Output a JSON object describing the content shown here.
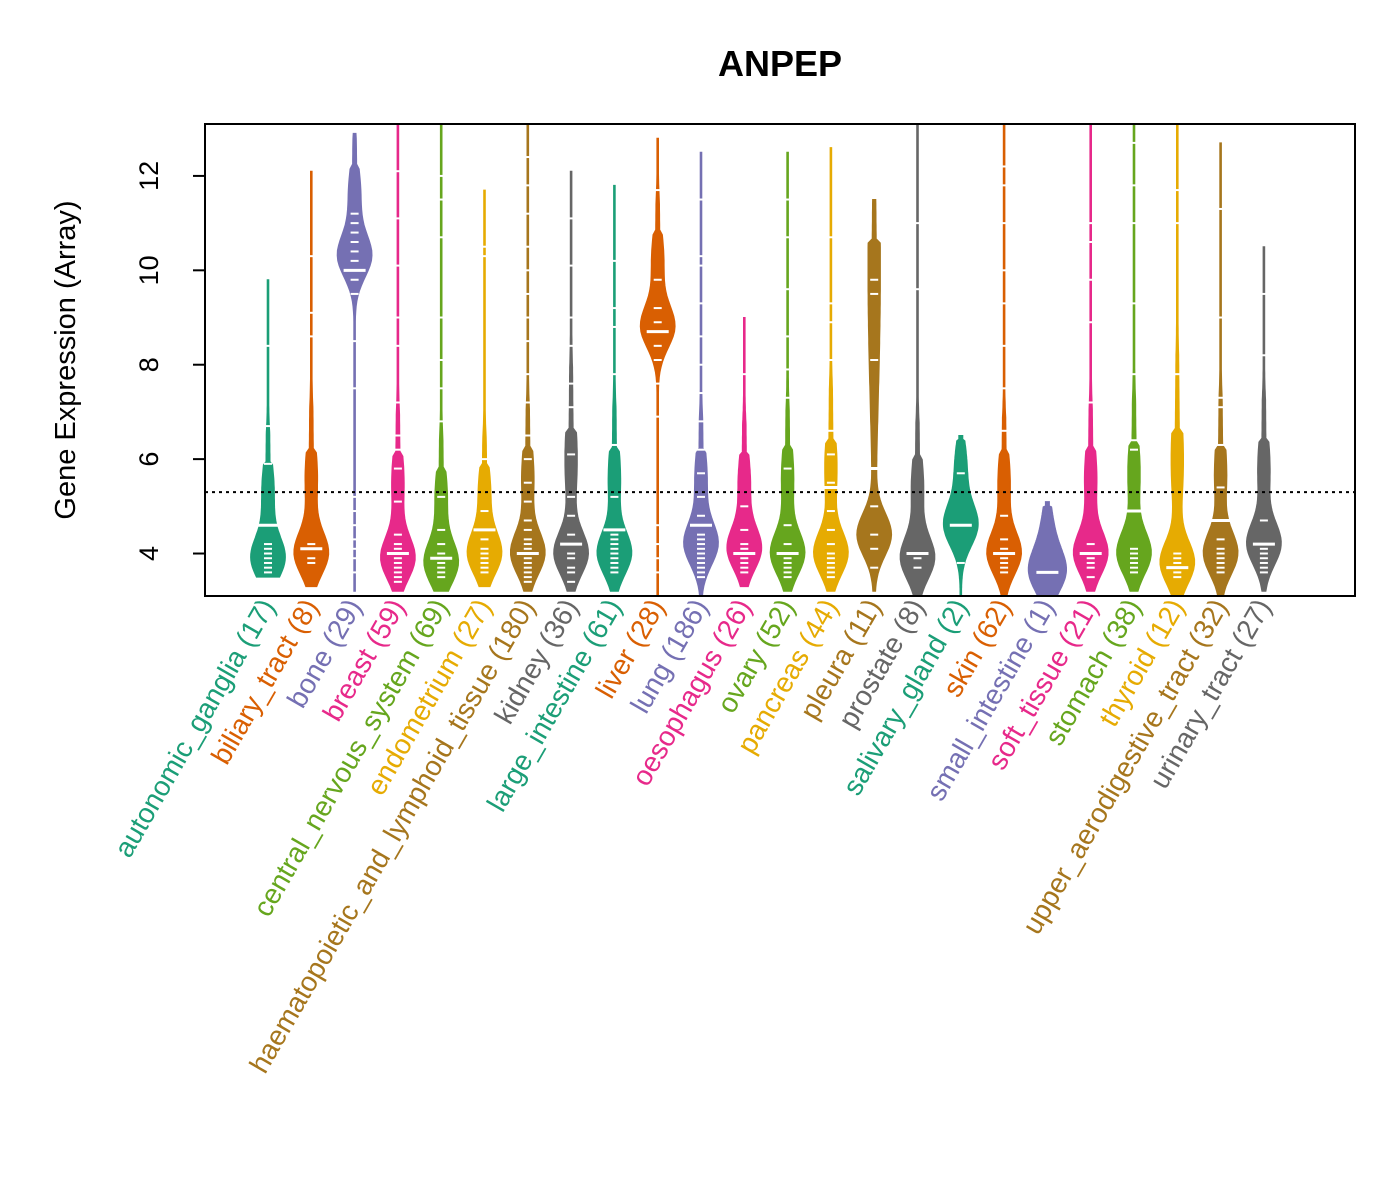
{
  "chart_data": {
    "type": "violin",
    "title": "ANPEP",
    "ylabel": "Gene Expression (Array)",
    "xlabel": "",
    "ylim": [
      3.1,
      13.1
    ],
    "yticks": [
      4,
      6,
      8,
      10,
      12
    ],
    "ytick_labels": [
      "4",
      "6",
      "8",
      "10",
      "12"
    ],
    "reference_line": 5.3,
    "categories": [
      {
        "name": "autonomic_ganglia",
        "count": 17,
        "label": "autonomic_ganglia (17)",
        "color": "#1B9E77",
        "min": 3.5,
        "max": 9.8,
        "median": 4.6,
        "mode": 3.9,
        "upper": 5.3,
        "points": [
          3.6,
          3.7,
          3.8,
          3.9,
          4.0,
          4.0,
          4.1,
          4.2,
          4.6,
          5.9,
          6.7,
          8.4
        ]
      },
      {
        "name": "biliary_tract",
        "count": 8,
        "label": "biliary_tract (8)",
        "color": "#D95F02",
        "min": 3.3,
        "max": 12.1,
        "median": 4.1,
        "mode": 4.0,
        "upper": 5.6,
        "points": [
          3.8,
          3.9,
          4.1,
          4.2,
          8.6,
          9.1,
          10.3
        ]
      },
      {
        "name": "bone",
        "count": 29,
        "label": "bone (29)",
        "color": "#7570B3",
        "min": 3.2,
        "max": 12.9,
        "median": 10.0,
        "mode": 10.3,
        "upper": 11.6,
        "points": [
          3.6,
          3.9,
          4.1,
          4.3,
          4.6,
          4.9,
          5.2,
          7.5,
          8.5,
          9.5,
          9.8,
          10.0,
          10.2,
          10.4,
          10.6,
          10.8,
          11.0,
          11.2
        ]
      },
      {
        "name": "breast",
        "count": 59,
        "label": "breast (59)",
        "color": "#E7298A",
        "min": 3.2,
        "max": 13.1,
        "median": 4.0,
        "mode": 3.9,
        "upper": 5.5,
        "points": [
          3.4,
          3.5,
          3.6,
          3.7,
          3.8,
          3.9,
          4.0,
          4.1,
          4.2,
          4.4,
          5.1,
          5.8,
          6.2,
          6.5,
          7.2,
          8.4,
          9.0,
          10.1,
          11.1,
          12.1
        ]
      },
      {
        "name": "central_nervous_system",
        "count": 69,
        "label": "central_nervous_system (69)",
        "color": "#66A61E",
        "min": 3.2,
        "max": 13.1,
        "median": 3.9,
        "mode": 3.8,
        "upper": 5.2,
        "points": [
          3.5,
          3.6,
          3.7,
          3.8,
          3.9,
          4.0,
          4.2,
          4.5,
          5.2,
          6.8,
          7.5,
          8.1,
          9.0,
          10.7,
          11.5,
          12.0
        ]
      },
      {
        "name": "endometrium",
        "count": 27,
        "label": "endometrium (27)",
        "color": "#E6AB02",
        "min": 3.3,
        "max": 11.7,
        "median": 4.5,
        "mode": 4.0,
        "upper": 5.3,
        "points": [
          3.6,
          3.7,
          3.8,
          3.9,
          4.0,
          4.1,
          4.3,
          4.9,
          6.0,
          10.3,
          10.5
        ]
      },
      {
        "name": "haematopoietic_and_lymphoid_tissue",
        "count": 180,
        "label": "haematopoietic_and_lymphoid_tissue (180)",
        "color": "#A6761D",
        "min": 3.2,
        "max": 13.1,
        "median": 4.0,
        "mode": 4.0,
        "upper": 5.6,
        "points": [
          3.4,
          3.5,
          3.6,
          3.7,
          3.8,
          3.9,
          4.0,
          4.1,
          4.2,
          4.3,
          4.5,
          4.7,
          5.1,
          5.5,
          6.0,
          6.5,
          7.2,
          7.8,
          8.5,
          9.0,
          9.5,
          10.0,
          10.5,
          11.2,
          11.8,
          12.4
        ]
      },
      {
        "name": "kidney",
        "count": 36,
        "label": "kidney (36)",
        "color": "#666666",
        "min": 3.2,
        "max": 12.1,
        "median": 4.2,
        "mode": 4.0,
        "upper": 6.0,
        "points": [
          3.4,
          3.6,
          3.7,
          3.9,
          4.0,
          4.2,
          4.4,
          4.8,
          5.2,
          6.1,
          7.1,
          7.6,
          8.4,
          9.0,
          10.1,
          11.1
        ]
      },
      {
        "name": "large_intestine",
        "count": 61,
        "label": "large_intestine (61)",
        "color": "#1B9E77",
        "min": 3.2,
        "max": 11.8,
        "median": 4.5,
        "mode": 4.0,
        "upper": 5.6,
        "points": [
          3.6,
          3.7,
          3.8,
          3.9,
          4.0,
          4.1,
          4.2,
          4.3,
          4.4,
          4.5,
          5.2,
          6.3,
          7.8,
          8.8,
          9.2,
          10.2
        ]
      },
      {
        "name": "liver",
        "count": 28,
        "label": "liver (28)",
        "color": "#D95F02",
        "min": 3.1,
        "max": 12.8,
        "median": 8.7,
        "mode": 8.8,
        "upper": 10.2,
        "points": [
          3.6,
          3.9,
          4.2,
          4.6,
          6.9,
          7.6,
          8.1,
          8.4,
          8.7,
          8.9,
          9.2,
          9.8,
          11.7
        ]
      },
      {
        "name": "lung",
        "count": 186,
        "label": "lung (186)",
        "color": "#7570B3",
        "min": 3.1,
        "max": 12.5,
        "median": 4.6,
        "mode": 4.2,
        "upper": 5.6,
        "points": [
          3.5,
          3.6,
          3.7,
          3.8,
          3.9,
          4.0,
          4.1,
          4.2,
          4.3,
          4.4,
          4.6,
          4.8,
          5.2,
          5.7,
          6.2,
          6.8,
          7.4,
          8.0,
          8.6,
          9.3,
          10.1,
          10.3,
          11.5
        ]
      },
      {
        "name": "oesophagus",
        "count": 26,
        "label": "oesophagus (26)",
        "color": "#E7298A",
        "min": 3.3,
        "max": 9.0,
        "median": 4.0,
        "mode": 4.1,
        "upper": 5.5,
        "points": [
          3.6,
          3.7,
          3.8,
          3.9,
          4.0,
          4.1,
          4.2,
          4.5,
          5.0,
          7.8
        ]
      },
      {
        "name": "ovary",
        "count": 52,
        "label": "ovary (52)",
        "color": "#66A61E",
        "min": 3.2,
        "max": 12.5,
        "median": 4.0,
        "mode": 4.0,
        "upper": 5.6,
        "points": [
          3.5,
          3.6,
          3.7,
          3.8,
          3.9,
          4.0,
          4.2,
          4.6,
          5.8,
          7.3,
          7.9,
          8.6,
          9.6,
          10.7,
          11.5
        ]
      },
      {
        "name": "pancreas",
        "count": 44,
        "label": "pancreas (44)",
        "color": "#E6AB02",
        "min": 3.2,
        "max": 12.6,
        "median": 5.4,
        "mode": 4.0,
        "upper": 5.8,
        "points": [
          3.5,
          3.6,
          3.7,
          3.8,
          3.9,
          4.0,
          4.2,
          4.5,
          4.9,
          5.5,
          6.1,
          6.6,
          8.1,
          8.9,
          9.3,
          10.7
        ]
      },
      {
        "name": "pleura",
        "count": 11,
        "label": "pleura (11)",
        "color": "#A6761D",
        "min": 3.2,
        "max": 11.5,
        "median": 5.8,
        "mode": 4.4,
        "upper": 10.0,
        "points": [
          3.7,
          4.1,
          4.4,
          5.0,
          5.8,
          8.1,
          9.5,
          9.8
        ]
      },
      {
        "name": "prostate",
        "count": 8,
        "label": "prostate (8)",
        "color": "#666666",
        "min": 3.1,
        "max": 13.1,
        "median": 4.0,
        "mode": 3.9,
        "upper": 5.4,
        "points": [
          3.7,
          3.9,
          4.0,
          9.6,
          11.0
        ]
      },
      {
        "name": "salivary_gland",
        "count": 2,
        "label": "salivary_gland (2)",
        "color": "#1B9E77",
        "min": 3.1,
        "max": 6.5,
        "median": 4.6,
        "mode": 4.6,
        "upper": 5.8,
        "points": [
          3.8,
          5.7
        ]
      },
      {
        "name": "skin",
        "count": 62,
        "label": "skin (62)",
        "color": "#D95F02",
        "min": 3.1,
        "max": 13.1,
        "median": 4.0,
        "mode": 4.0,
        "upper": 5.5,
        "points": [
          3.6,
          3.7,
          3.8,
          3.9,
          4.0,
          4.1,
          4.3,
          4.8,
          6.6,
          7.5,
          8.4,
          9.3,
          10.0,
          11.0,
          11.8,
          12.2
        ]
      },
      {
        "name": "small_intestine",
        "count": 1,
        "label": "small_intestine (1)",
        "color": "#7570B3",
        "min": 3.1,
        "max": 5.1,
        "median": 3.6,
        "mode": 3.6,
        "upper": 4.4,
        "points": [
          3.6
        ]
      },
      {
        "name": "soft_tissue",
        "count": 21,
        "label": "soft_tissue (21)",
        "color": "#E7298A",
        "min": 3.2,
        "max": 13.1,
        "median": 4.0,
        "mode": 4.0,
        "upper": 5.6,
        "points": [
          3.5,
          3.7,
          3.8,
          3.9,
          4.0,
          4.2,
          7.2,
          8.9,
          9.8,
          10.6,
          11.0
        ]
      },
      {
        "name": "stomach",
        "count": 38,
        "label": "stomach (38)",
        "color": "#66A61E",
        "min": 3.2,
        "max": 13.1,
        "median": 4.9,
        "mode": 4.0,
        "upper": 5.7,
        "points": [
          3.6,
          3.7,
          3.8,
          3.9,
          4.0,
          4.1,
          4.9,
          6.2,
          6.4,
          7.8,
          9.3,
          11.0,
          11.8,
          12.7
        ]
      },
      {
        "name": "thyroid",
        "count": 12,
        "label": "thyroid (12)",
        "color": "#E6AB02",
        "min": 3.1,
        "max": 13.1,
        "median": 3.7,
        "mode": 3.8,
        "upper": 6.0,
        "points": [
          3.5,
          3.6,
          3.8,
          3.9,
          4.0,
          7.8,
          11.0,
          11.7
        ]
      },
      {
        "name": "upper_aerodigestive_tract",
        "count": 32,
        "label": "upper_aerodigestive_tract (32)",
        "color": "#A6761D",
        "min": 3.1,
        "max": 12.7,
        "median": 4.7,
        "mode": 4.0,
        "upper": 5.7,
        "points": [
          3.6,
          3.7,
          3.8,
          3.9,
          4.0,
          4.1,
          4.3,
          4.7,
          5.4,
          6.3,
          7.1,
          7.3,
          9.0,
          11.3
        ]
      },
      {
        "name": "urinary_tract",
        "count": 27,
        "label": "urinary_tract (27)",
        "color": "#666666",
        "min": 3.2,
        "max": 10.5,
        "median": 4.2,
        "mode": 4.2,
        "upper": 5.8,
        "points": [
          3.6,
          3.7,
          3.8,
          3.9,
          4.0,
          4.1,
          4.2,
          4.7,
          8.2,
          9.5
        ]
      }
    ]
  }
}
